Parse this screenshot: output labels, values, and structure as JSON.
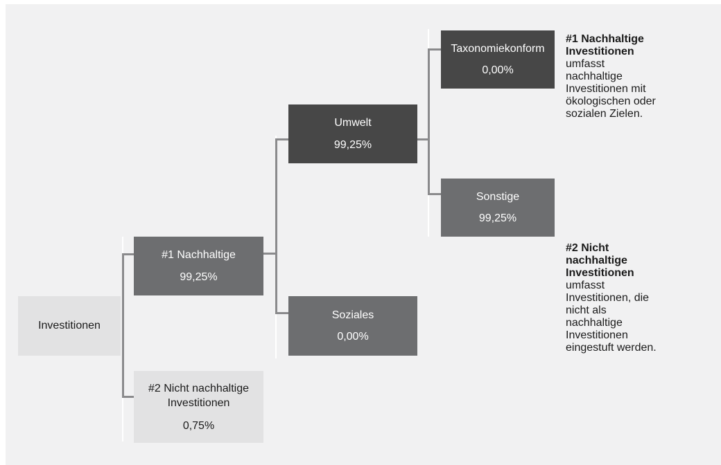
{
  "diagram": {
    "root": {
      "label": "Investitionen"
    },
    "sustainable": {
      "label": "#1 Nachhaltige",
      "value": "99,25%"
    },
    "not_sustainable": {
      "label_line1": "#2 Nicht nachhaltige",
      "label_line2": "Investitionen",
      "value": "0,75%"
    },
    "environmental": {
      "label": "Umwelt",
      "value": "99,25%"
    },
    "social": {
      "label": "Soziales",
      "value": "0,00%"
    },
    "taxonomy": {
      "label": "Taxonomiekonform",
      "value": "0,00%"
    },
    "other": {
      "label": "Sonstige",
      "value": "99,25%"
    }
  },
  "legend": {
    "item1": {
      "heading_line1": "#1 Nachhaltige",
      "heading_line2": "Investitionen",
      "text_lines": [
        "umfasst",
        "nachhaltige",
        "Investitionen mit",
        "ökologischen oder",
        "sozialen Zielen."
      ]
    },
    "item2": {
      "heading_line1": "#2 Nicht",
      "heading_line2": "nachhaltige",
      "heading_line3": "Investitionen",
      "text_lines": [
        "umfasst",
        "Investitionen, die",
        "nicht als",
        "nachhaltige",
        "Investitionen",
        "eingestuft werden."
      ]
    }
  },
  "colors": {
    "dark_box": "#474747",
    "mid_box": "#6d6e70",
    "light_box": "#e2e2e3",
    "background": "#f1f1f2",
    "connector": "#8a8a8c"
  }
}
